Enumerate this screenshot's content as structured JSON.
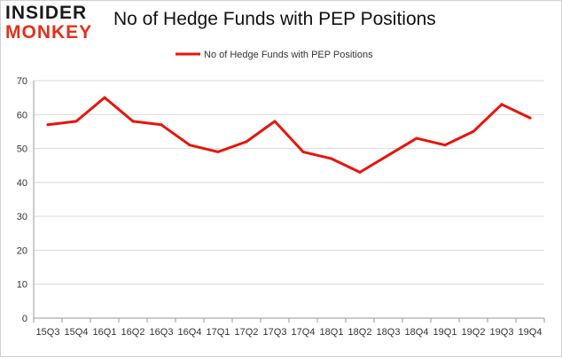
{
  "logo": {
    "line1": "INSIDER",
    "line2": "MONKEY"
  },
  "chart_data": {
    "type": "line",
    "title": "No of Hedge Funds with PEP Positions",
    "xlabel": "",
    "ylabel": "",
    "categories": [
      "15Q3",
      "15Q4",
      "16Q1",
      "16Q2",
      "16Q3",
      "16Q4",
      "17Q1",
      "17Q2",
      "17Q3",
      "17Q4",
      "18Q1",
      "18Q2",
      "18Q3",
      "18Q4",
      "19Q1",
      "19Q2",
      "19Q3",
      "19Q4"
    ],
    "series": [
      {
        "name": "No of Hedge Funds with PEP Positions",
        "values": [
          57,
          58,
          65,
          58,
          57,
          51,
          49,
          52,
          58,
          49,
          47,
          43,
          48,
          53,
          51,
          55,
          63,
          59
        ]
      }
    ],
    "ylim": [
      0,
      70
    ],
    "yticks": [
      0,
      10,
      20,
      30,
      40,
      50,
      60,
      70
    ],
    "grid": true,
    "legend_position": "top-center",
    "line_color": "#e8140c"
  }
}
